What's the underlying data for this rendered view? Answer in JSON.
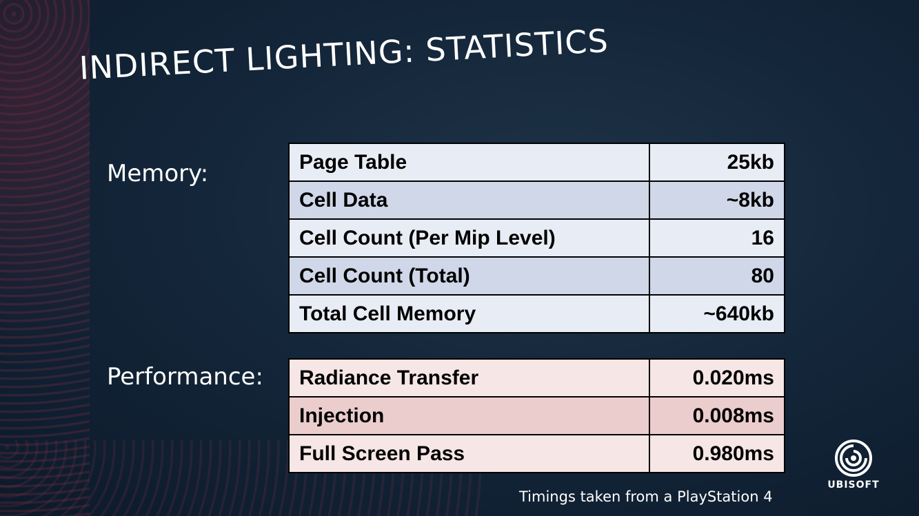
{
  "title": "INDIRECT LIGHTING: STATISTICS",
  "memory": {
    "label": "Memory:",
    "rows": [
      {
        "name": "Page Table",
        "value": "25kb"
      },
      {
        "name": "Cell Data",
        "value": "~8kb"
      },
      {
        "name": "Cell Count (Per Mip Level)",
        "value": "16"
      },
      {
        "name": "Cell Count (Total)",
        "value": "80"
      },
      {
        "name": "Total Cell Memory",
        "value": "~640kb"
      }
    ]
  },
  "performance": {
    "label": "Performance:",
    "rows": [
      {
        "name": "Radiance Transfer",
        "value": "0.020ms"
      },
      {
        "name": "Injection",
        "value": "0.008ms"
      },
      {
        "name": "Full Screen Pass",
        "value": "0.980ms"
      }
    ]
  },
  "footnote": "Timings taken from a PlayStation 4",
  "logo": {
    "text": "UBISOFT",
    "icon": "ubisoft-swirl-icon"
  },
  "colors": {
    "memory_border": "#4a7bc4",
    "performance_border": "#c6434a",
    "background": "#14263a"
  }
}
